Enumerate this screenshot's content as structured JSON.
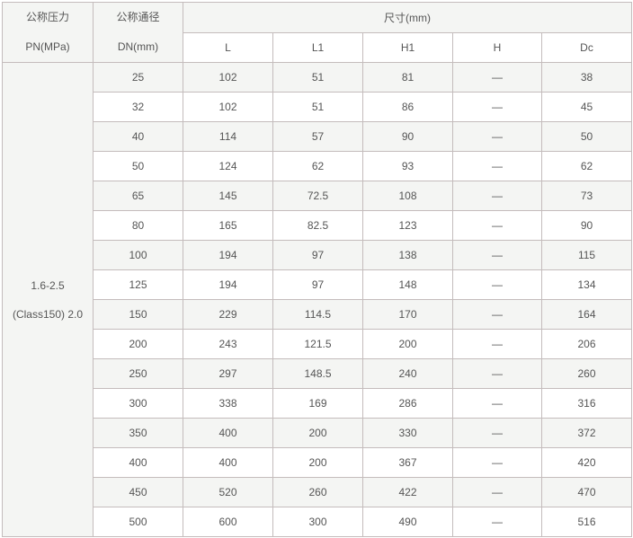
{
  "header": {
    "pn_cn": "公称压力",
    "pn_en": "PN(MPa)",
    "dn_cn": "公称通径",
    "dn_en": "DN(mm)",
    "dimensions": "尺寸(mm)",
    "columns": [
      "L",
      "L1",
      "H1",
      "H",
      "Dc"
    ]
  },
  "pressure": {
    "line1": "1.6-2.5",
    "line2": "(Class150) 2.0"
  },
  "rows": [
    [
      "25",
      "102",
      "51",
      "81",
      "—",
      "38"
    ],
    [
      "32",
      "102",
      "51",
      "86",
      "—",
      "45"
    ],
    [
      "40",
      "114",
      "57",
      "90",
      "—",
      "50"
    ],
    [
      "50",
      "124",
      "62",
      "93",
      "—",
      "62"
    ],
    [
      "65",
      "145",
      "72.5",
      "108",
      "—",
      "73"
    ],
    [
      "80",
      "165",
      "82.5",
      "123",
      "—",
      "90"
    ],
    [
      "100",
      "194",
      "97",
      "138",
      "—",
      "115"
    ],
    [
      "125",
      "194",
      "97",
      "148",
      "—",
      "134"
    ],
    [
      "150",
      "229",
      "114.5",
      "170",
      "—",
      "164"
    ],
    [
      "200",
      "243",
      "121.5",
      "200",
      "—",
      "206"
    ],
    [
      "250",
      "297",
      "148.5",
      "240",
      "—",
      "260"
    ],
    [
      "300",
      "338",
      "169",
      "286",
      "—",
      "316"
    ],
    [
      "350",
      "400",
      "200",
      "330",
      "—",
      "372"
    ],
    [
      "400",
      "400",
      "200",
      "367",
      "—",
      "420"
    ],
    [
      "450",
      "520",
      "260",
      "422",
      "—",
      "470"
    ],
    [
      "500",
      "600",
      "300",
      "490",
      "—",
      "516"
    ]
  ]
}
